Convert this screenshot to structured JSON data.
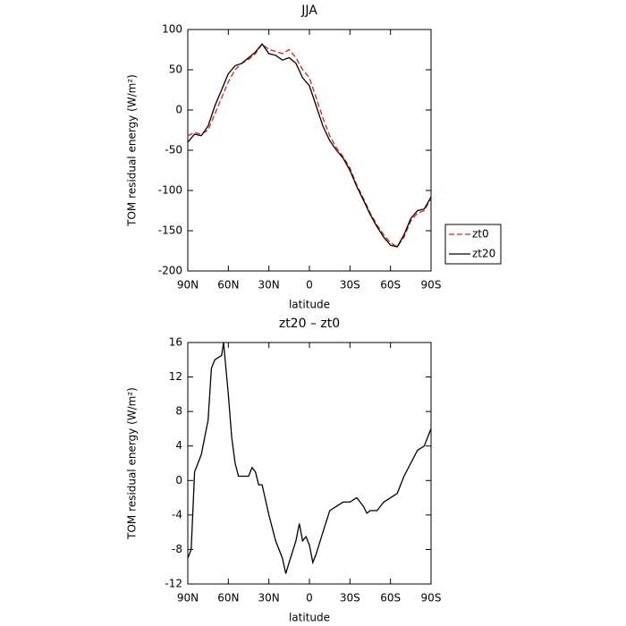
{
  "chart_data": [
    {
      "type": "line",
      "title": "JJA",
      "xlabel": "latitude",
      "ylabel": "TOM residual energy (W/m²)",
      "x": [
        90,
        85,
        80,
        75,
        70,
        65,
        60,
        55,
        50,
        45,
        40,
        35,
        30,
        25,
        20,
        15,
        10,
        5,
        0,
        -5,
        -10,
        -15,
        -20,
        -25,
        -30,
        -35,
        -40,
        -45,
        -50,
        -55,
        -60,
        -65,
        -70,
        -75,
        -80,
        -85,
        -90
      ],
      "series": [
        {
          "name": "zt0",
          "color": "#e41a1c",
          "line_style": "dashed",
          "values": [
            -32,
            -28,
            -30,
            -25,
            -5,
            15,
            35,
            50,
            58,
            63,
            70,
            82,
            75,
            73,
            70,
            75,
            65,
            50,
            40,
            15,
            -10,
            -32,
            -47,
            -58,
            -72,
            -93,
            -110,
            -128,
            -143,
            -155,
            -165,
            -170,
            -158,
            -138,
            -128,
            -125,
            -110
          ]
        },
        {
          "name": "zt20",
          "color": "#000000",
          "line_style": "solid",
          "values": [
            -40,
            -30,
            -32,
            -20,
            5,
            25,
            45,
            55,
            58,
            65,
            72,
            82,
            70,
            68,
            62,
            65,
            58,
            40,
            30,
            5,
            -20,
            -38,
            -50,
            -60,
            -75,
            -95,
            -112,
            -130,
            -145,
            -158,
            -168,
            -170,
            -155,
            -135,
            -125,
            -123,
            -108
          ]
        }
      ],
      "xlim": [
        90,
        -90
      ],
      "xticks": [
        {
          "value": 90,
          "label": "90N"
        },
        {
          "value": 60,
          "label": "60N"
        },
        {
          "value": 30,
          "label": "30N"
        },
        0,
        {
          "value": -30,
          "label": "30S"
        },
        {
          "value": -60,
          "label": "60S"
        },
        {
          "value": -90,
          "label": "90S"
        }
      ],
      "ylim": [
        -200,
        100
      ],
      "yticks": [
        -200,
        -150,
        -100,
        -50,
        0,
        50,
        100
      ],
      "legend": "right"
    },
    {
      "type": "line",
      "title": "zt20 – zt0",
      "xlabel": "latitude",
      "ylabel": "TOM residual energy (W/m²)",
      "x": [
        90,
        87.5,
        85,
        80,
        75,
        72.5,
        70,
        65,
        63.5,
        60,
        57.5,
        55,
        52.5,
        50,
        45,
        42.5,
        40,
        37.5,
        35,
        30,
        25,
        20,
        17.5,
        15,
        10,
        7.5,
        5,
        2.5,
        0,
        -2.5,
        -5,
        -10,
        -15,
        -20,
        -25,
        -30,
        -35,
        -40,
        -42.5,
        -45,
        -50,
        -55,
        -60,
        -65,
        -70,
        -75,
        -80,
        -85,
        -90
      ],
      "series": [
        {
          "color": "#000000",
          "line_style": "solid",
          "values": [
            -9,
            -8,
            1,
            3,
            7,
            13,
            14,
            14.5,
            16,
            10,
            5,
            2,
            0.5,
            0.5,
            0.5,
            1.5,
            1,
            -0.5,
            -0.5,
            -4,
            -7,
            -9,
            -10.8,
            -9.5,
            -7,
            -5,
            -7,
            -6.5,
            -7.5,
            -9.5,
            -8.5,
            -6,
            -3.5,
            -3,
            -2.5,
            -2.5,
            -2,
            -3,
            -3.8,
            -3.5,
            -3.5,
            -2.5,
            -2,
            -1.5,
            0.5,
            2,
            3.5,
            4,
            6
          ]
        }
      ],
      "xlim": [
        90,
        -90
      ],
      "xticks": [
        {
          "value": 90,
          "label": "90N"
        },
        {
          "value": 60,
          "label": "60N"
        },
        {
          "value": 30,
          "label": "30N"
        },
        0,
        {
          "value": -30,
          "label": "30S"
        },
        {
          "value": -60,
          "label": "60S"
        },
        {
          "value": -90,
          "label": "90S"
        }
      ],
      "ylim": [
        -12,
        16
      ],
      "yticks": [
        -12,
        -8,
        -4,
        0,
        4,
        8,
        12,
        16
      ]
    }
  ]
}
